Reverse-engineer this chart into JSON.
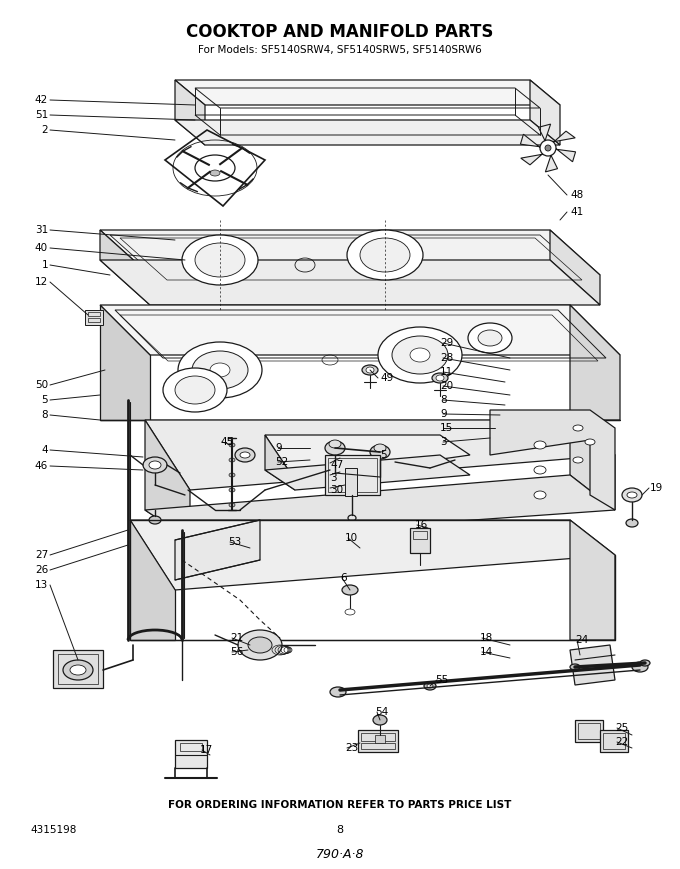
{
  "title": "COOKTOP AND MANIFOLD PARTS",
  "subtitle": "For Models: SF5140SRW4, SF5140SRW5, SF5140SRW6",
  "footer_text": "FOR ORDERING INFORMATION REFER TO PARTS PRICE LIST",
  "part_number_left": "4315198",
  "page_number": "8",
  "diagram_code": "790·A·8",
  "bg_color": "#ffffff",
  "title_fontsize": 12,
  "subtitle_fontsize": 7.5,
  "fig_width": 6.8,
  "fig_height": 8.69,
  "dpi": 100,
  "lc": "#1a1a1a",
  "lw": 0.9
}
